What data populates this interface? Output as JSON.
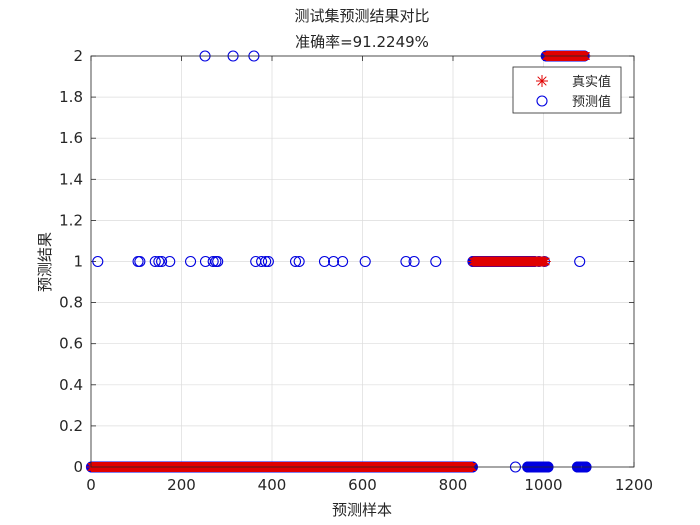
{
  "chart_data": {
    "type": "scatter",
    "title": "测试集预测结果对比",
    "subtitle": "准确率=91.2249%",
    "xlabel": "预测样本",
    "ylabel": "预测结果",
    "xlim": [
      0,
      1200
    ],
    "ylim": [
      0,
      2
    ],
    "xticks": [
      0,
      200,
      400,
      600,
      800,
      1000,
      1200
    ],
    "yticks": [
      0,
      0.2,
      0.4,
      0.6,
      0.8,
      1,
      1.2,
      1.4,
      1.6,
      1.8,
      2
    ],
    "grid": true,
    "legend_position": "top-right",
    "series": [
      {
        "name": "真实值",
        "marker": "asterisk",
        "color": "#e00000",
        "ranges": [
          {
            "y": 0,
            "x_from": 1,
            "x_to": 843
          },
          {
            "y": 1,
            "x_from": 844,
            "x_to": 1005
          },
          {
            "y": 2,
            "x_from": 1006,
            "x_to": 1094
          }
        ]
      },
      {
        "name": "预测值",
        "marker": "circle",
        "color": "#0000e0",
        "ranges": [
          {
            "y": 0,
            "x_from": 1,
            "x_to": 843
          },
          {
            "y": 1,
            "x_from": 844,
            "x_to": 980
          },
          {
            "y": 0,
            "x_from": 965,
            "x_to": 1010
          },
          {
            "y": 2,
            "x_from": 1006,
            "x_to": 1090
          },
          {
            "y": 0,
            "x_from": 1075,
            "x_to": 1094
          }
        ],
        "points": [
          {
            "x": 15,
            "y": 1
          },
          {
            "x": 104,
            "y": 1
          },
          {
            "x": 108,
            "y": 1
          },
          {
            "x": 142,
            "y": 1
          },
          {
            "x": 150,
            "y": 1
          },
          {
            "x": 156,
            "y": 1
          },
          {
            "x": 174,
            "y": 1
          },
          {
            "x": 220,
            "y": 1
          },
          {
            "x": 252,
            "y": 2
          },
          {
            "x": 253,
            "y": 1
          },
          {
            "x": 270,
            "y": 1
          },
          {
            "x": 276,
            "y": 1
          },
          {
            "x": 280,
            "y": 1
          },
          {
            "x": 314,
            "y": 2
          },
          {
            "x": 360,
            "y": 2
          },
          {
            "x": 364,
            "y": 1
          },
          {
            "x": 377,
            "y": 1
          },
          {
            "x": 386,
            "y": 1
          },
          {
            "x": 392,
            "y": 1
          },
          {
            "x": 452,
            "y": 1
          },
          {
            "x": 460,
            "y": 1
          },
          {
            "x": 516,
            "y": 1
          },
          {
            "x": 536,
            "y": 1
          },
          {
            "x": 556,
            "y": 1
          },
          {
            "x": 606,
            "y": 1
          },
          {
            "x": 696,
            "y": 1
          },
          {
            "x": 714,
            "y": 1
          },
          {
            "x": 762,
            "y": 1
          },
          {
            "x": 938,
            "y": 0
          },
          {
            "x": 990,
            "y": 1
          },
          {
            "x": 1002,
            "y": 1
          },
          {
            "x": 1080,
            "y": 1
          }
        ]
      }
    ]
  }
}
